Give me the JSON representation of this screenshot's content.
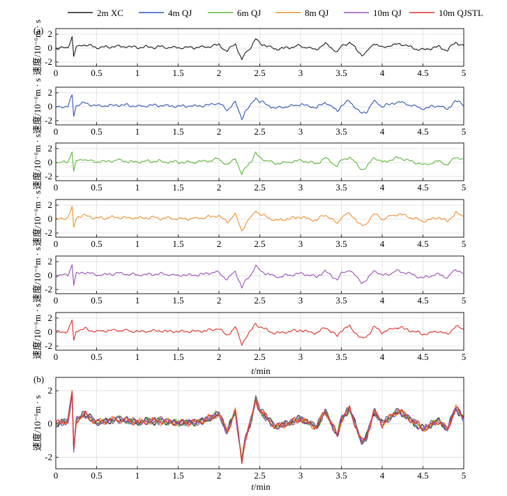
{
  "legend": [
    {
      "label": "2m XC",
      "color": "#1a1a1a"
    },
    {
      "label": "4m QJ",
      "color": "#2f55b8"
    },
    {
      "label": "6m QJ",
      "color": "#59b83a"
    },
    {
      "label": "8m QJ",
      "color": "#f0902e"
    },
    {
      "label": "10m QJ",
      "color": "#9a4fb6"
    },
    {
      "label": "10m QJSTL",
      "color": "#e0302a"
    }
  ],
  "panel_a_tag": "(a)",
  "panel_b_tag": "(b)",
  "ylabel": "速度/10⁻⁶m · s",
  "xlabel_italic": "t",
  "xlabel_rest": "/min",
  "chart_data": [
    {
      "type": "line",
      "panel": "(a)",
      "subplots": 6,
      "series_per_subplot": [
        "2m XC",
        "4m QJ",
        "6m QJ",
        "8m QJ",
        "10m QJ",
        "10m QJSTL"
      ],
      "xlim": [
        0,
        5
      ],
      "ylim": [
        -2.6,
        2.8
      ],
      "xticks": [
        "0",
        "0.5",
        "1",
        "1.5",
        "2",
        "2.5",
        "3",
        "3.5",
        "4",
        "4.5",
        "5"
      ],
      "yticks": [
        "-2",
        "0",
        "2"
      ],
      "xlabel": "t/min",
      "ylabel": "速度/10⁻⁶m · s",
      "grid": true,
      "x": [
        0,
        0.15,
        0.2,
        0.22,
        0.25,
        0.35,
        0.5,
        0.75,
        1,
        1.25,
        1.5,
        1.75,
        2,
        2.1,
        2.2,
        2.28,
        2.32,
        2.4,
        2.45,
        2.5,
        2.7,
        3,
        3.2,
        3.3,
        3.45,
        3.5,
        3.6,
        3.75,
        3.8,
        3.9,
        4,
        4.2,
        4.5,
        4.7,
        4.8,
        4.9,
        5
      ],
      "values": [
        0,
        0.1,
        1.7,
        -1.3,
        0.2,
        0.5,
        0.1,
        0.3,
        0.1,
        0.2,
        0.05,
        0.1,
        0.5,
        -0.5,
        0.7,
        -1.8,
        -0.8,
        0.3,
        1.3,
        0.7,
        -0.2,
        0.3,
        -0.2,
        0.7,
        -0.6,
        0.3,
        0.8,
        -1.0,
        -0.8,
        0.8,
        0.0,
        0.7,
        -0.3,
        0.2,
        -0.4,
        0.9,
        0.3
      ]
    },
    {
      "type": "line",
      "panel": "(b)",
      "xlim": [
        0,
        5
      ],
      "ylim": [
        -2.7,
        2.8
      ],
      "xticks": [
        "0",
        "0.5",
        "1",
        "1.5",
        "2",
        "2.5",
        "3",
        "3.5",
        "4",
        "4.5",
        "5"
      ],
      "yticks": [
        "-2",
        "0",
        "2"
      ],
      "xlabel": "t/min",
      "ylabel": "速度/10⁻⁶m · s",
      "grid": true,
      "series": [
        {
          "name": "2m XC",
          "color": "#1a1a1a"
        },
        {
          "name": "4m QJ",
          "color": "#2f55b8"
        },
        {
          "name": "6m QJ",
          "color": "#59b83a"
        },
        {
          "name": "8m QJ",
          "color": "#f0902e"
        },
        {
          "name": "10m QJ",
          "color": "#9a4fb6"
        },
        {
          "name": "10m QJSTL",
          "color": "#e0302a"
        }
      ],
      "x": [
        0,
        0.15,
        0.2,
        0.22,
        0.25,
        0.35,
        0.5,
        0.75,
        1,
        1.25,
        1.5,
        1.75,
        2,
        2.1,
        2.2,
        2.28,
        2.32,
        2.4,
        2.45,
        2.5,
        2.7,
        3,
        3.2,
        3.3,
        3.45,
        3.5,
        3.6,
        3.75,
        3.8,
        3.9,
        4,
        4.2,
        4.5,
        4.7,
        4.8,
        4.9,
        5
      ],
      "values": [
        0,
        0.2,
        1.9,
        -1.6,
        0.2,
        0.6,
        0.1,
        0.3,
        0.1,
        0.2,
        0.05,
        0.1,
        0.6,
        -0.5,
        0.8,
        -2.3,
        -0.9,
        0.3,
        1.5,
        0.8,
        -0.2,
        0.3,
        -0.2,
        0.8,
        -0.7,
        0.3,
        0.9,
        -1.1,
        -0.9,
        0.8,
        0.0,
        0.8,
        -0.3,
        0.2,
        -0.4,
        1.0,
        0.3
      ]
    }
  ]
}
